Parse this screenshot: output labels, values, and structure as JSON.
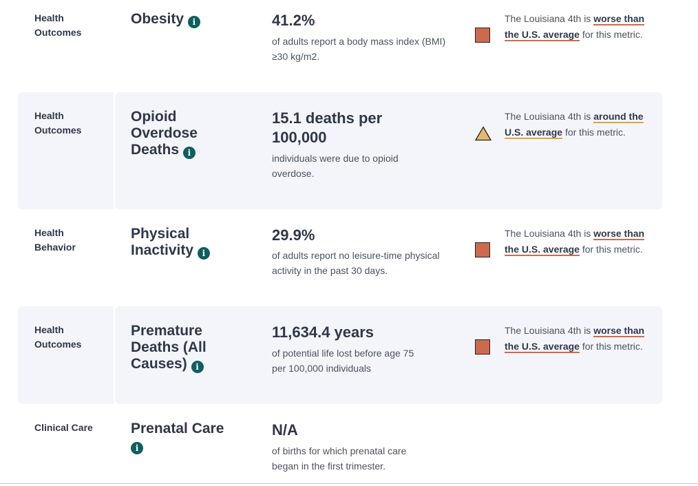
{
  "colors": {
    "worse": "#cd6a4e",
    "around": "#e7b96e",
    "info_icon": "#0e5f5f",
    "row_shade": "#f4f5fb"
  },
  "rows": [
    {
      "category": "Health\nOutcomes",
      "metric": "Obesity",
      "value": "41.2%",
      "description": "of adults report a body mass index (BMI) ≥30 kg/m2.",
      "marker": "square",
      "note": {
        "prefix": "The Louisiana 4th is ",
        "highlight": "worse than the U.S. average",
        "suffix": " for this metric."
      }
    },
    {
      "category": "Health\nOutcomes",
      "metric": "Opioid Overdose Deaths",
      "value": "15.1 deaths per 100,000",
      "description": "individuals were due to opioid overdose.",
      "marker": "triangle",
      "note": {
        "prefix": "The Louisiana 4th is ",
        "highlight": "around the U.S. average",
        "suffix": " for this metric."
      }
    },
    {
      "category": "Health\nBehavior",
      "metric": "Physical Inactivity",
      "value": "29.9%",
      "description": "of adults report no leisure-time physical activity in the past 30 days.",
      "marker": "square",
      "note": {
        "prefix": "The Louisiana 4th is ",
        "highlight": "worse than the U.S. average",
        "suffix": " for this metric."
      }
    },
    {
      "category": "Health\nOutcomes",
      "metric": "Premature Deaths (All Causes)",
      "value": "11,634.4 years",
      "description": "of potential life lost before age 75 per 100,000 individuals",
      "marker": "square",
      "note": {
        "prefix": "The Louisiana 4th is ",
        "highlight": "worse than the U.S. average",
        "suffix": " for this metric."
      }
    },
    {
      "category": "Clinical Care",
      "metric": "Prenatal Care",
      "value": "N/A",
      "description": "of births for which prenatal care began in the first trimester."
    }
  ],
  "info_icon_glyph": "i"
}
